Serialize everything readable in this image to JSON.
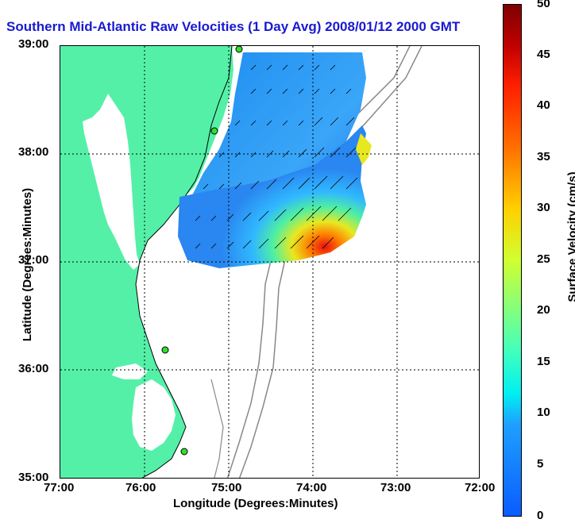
{
  "title": "Southern Mid-Atlantic Raw Velocities (1 Day Avg) 2008/01/12 2000 GMT",
  "axes": {
    "xlabel": "Longitude (Degrees:Minutes)",
    "ylabel": "Latitude (Degrees:Minutes)",
    "xticks": [
      "77:00",
      "76:00",
      "75:00",
      "74:00",
      "73:00",
      "72:00"
    ],
    "yticks": [
      "39:00",
      "38:00",
      "37:00",
      "36:00",
      "35:00"
    ]
  },
  "colorbar": {
    "label": "Surface Velocity (cm/s)",
    "ticks": [
      "50",
      "45",
      "40",
      "35",
      "30",
      "25",
      "20",
      "15",
      "10",
      "5",
      "0"
    ],
    "range": [
      0,
      50
    ],
    "colors": [
      "#0a5cff",
      "#00f0f0",
      "#80ff80",
      "#ffd000",
      "#ff2000",
      "#800000"
    ]
  },
  "map": {
    "land_color": "#55f0a8",
    "water_color": "#ffffff",
    "bathymetry_color": "#888888",
    "grid": "dotted",
    "stations": 4
  }
}
